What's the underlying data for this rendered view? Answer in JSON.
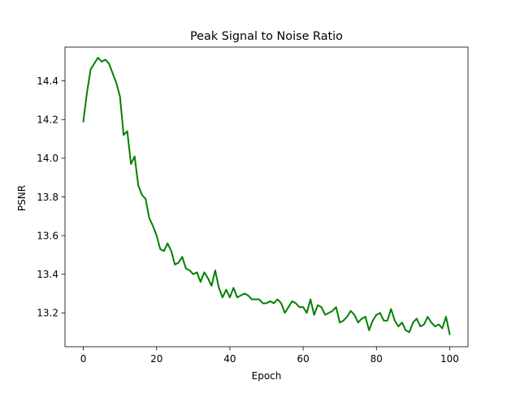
{
  "chart_data": {
    "type": "line",
    "title": "Peak Signal to Noise Ratio",
    "xlabel": "Epoch",
    "ylabel": "PSNR",
    "xlim": [
      -5,
      105
    ],
    "ylim": [
      13.025,
      14.575
    ],
    "xticks": [
      0,
      20,
      40,
      60,
      80,
      100
    ],
    "yticks": [
      13.2,
      13.4,
      13.6,
      13.8,
      14.0,
      14.2,
      14.4
    ],
    "xtick_labels": [
      "0",
      "20",
      "40",
      "60",
      "80",
      "100"
    ],
    "ytick_labels": [
      "13.2",
      "13.4",
      "13.6",
      "13.8",
      "14.0",
      "14.2",
      "14.4"
    ],
    "grid": false,
    "series": [
      {
        "name": "PSNR",
        "color": "#008000",
        "x": [
          0,
          1,
          2,
          3,
          4,
          5,
          6,
          7,
          8,
          9,
          10,
          11,
          12,
          13,
          14,
          15,
          16,
          17,
          18,
          19,
          20,
          21,
          22,
          23,
          24,
          25,
          26,
          27,
          28,
          29,
          30,
          31,
          32,
          33,
          34,
          35,
          36,
          37,
          38,
          39,
          40,
          41,
          42,
          43,
          44,
          45,
          46,
          47,
          48,
          49,
          50,
          51,
          52,
          53,
          54,
          55,
          56,
          57,
          58,
          59,
          60,
          61,
          62,
          63,
          64,
          65,
          66,
          67,
          68,
          69,
          70,
          71,
          72,
          73,
          74,
          75,
          76,
          77,
          78,
          79,
          80,
          81,
          82,
          83,
          84,
          85,
          86,
          87,
          88,
          89,
          90,
          91,
          92,
          93,
          94,
          95,
          96,
          97,
          98,
          99,
          100
        ],
        "values": [
          14.19,
          14.34,
          14.46,
          14.49,
          14.52,
          14.5,
          14.51,
          14.49,
          14.44,
          14.39,
          14.32,
          14.12,
          14.14,
          13.97,
          14.01,
          13.86,
          13.81,
          13.79,
          13.69,
          13.65,
          13.6,
          13.53,
          13.52,
          13.56,
          13.52,
          13.45,
          13.46,
          13.49,
          13.43,
          13.42,
          13.4,
          13.41,
          13.36,
          13.41,
          13.38,
          13.34,
          13.42,
          13.33,
          13.28,
          13.32,
          13.28,
          13.33,
          13.28,
          13.29,
          13.3,
          13.29,
          13.27,
          13.27,
          13.27,
          13.25,
          13.25,
          13.26,
          13.25,
          13.27,
          13.25,
          13.2,
          13.23,
          13.26,
          13.25,
          13.23,
          13.23,
          13.2,
          13.27,
          13.19,
          13.24,
          13.23,
          13.19,
          13.2,
          13.21,
          13.23,
          13.15,
          13.16,
          13.18,
          13.21,
          13.19,
          13.15,
          13.17,
          13.18,
          13.11,
          13.16,
          13.19,
          13.2,
          13.16,
          13.16,
          13.22,
          13.16,
          13.13,
          13.15,
          13.11,
          13.1,
          13.15,
          13.17,
          13.13,
          13.14,
          13.18,
          13.15,
          13.13,
          13.14,
          13.12,
          13.18,
          13.09
        ]
      }
    ]
  }
}
